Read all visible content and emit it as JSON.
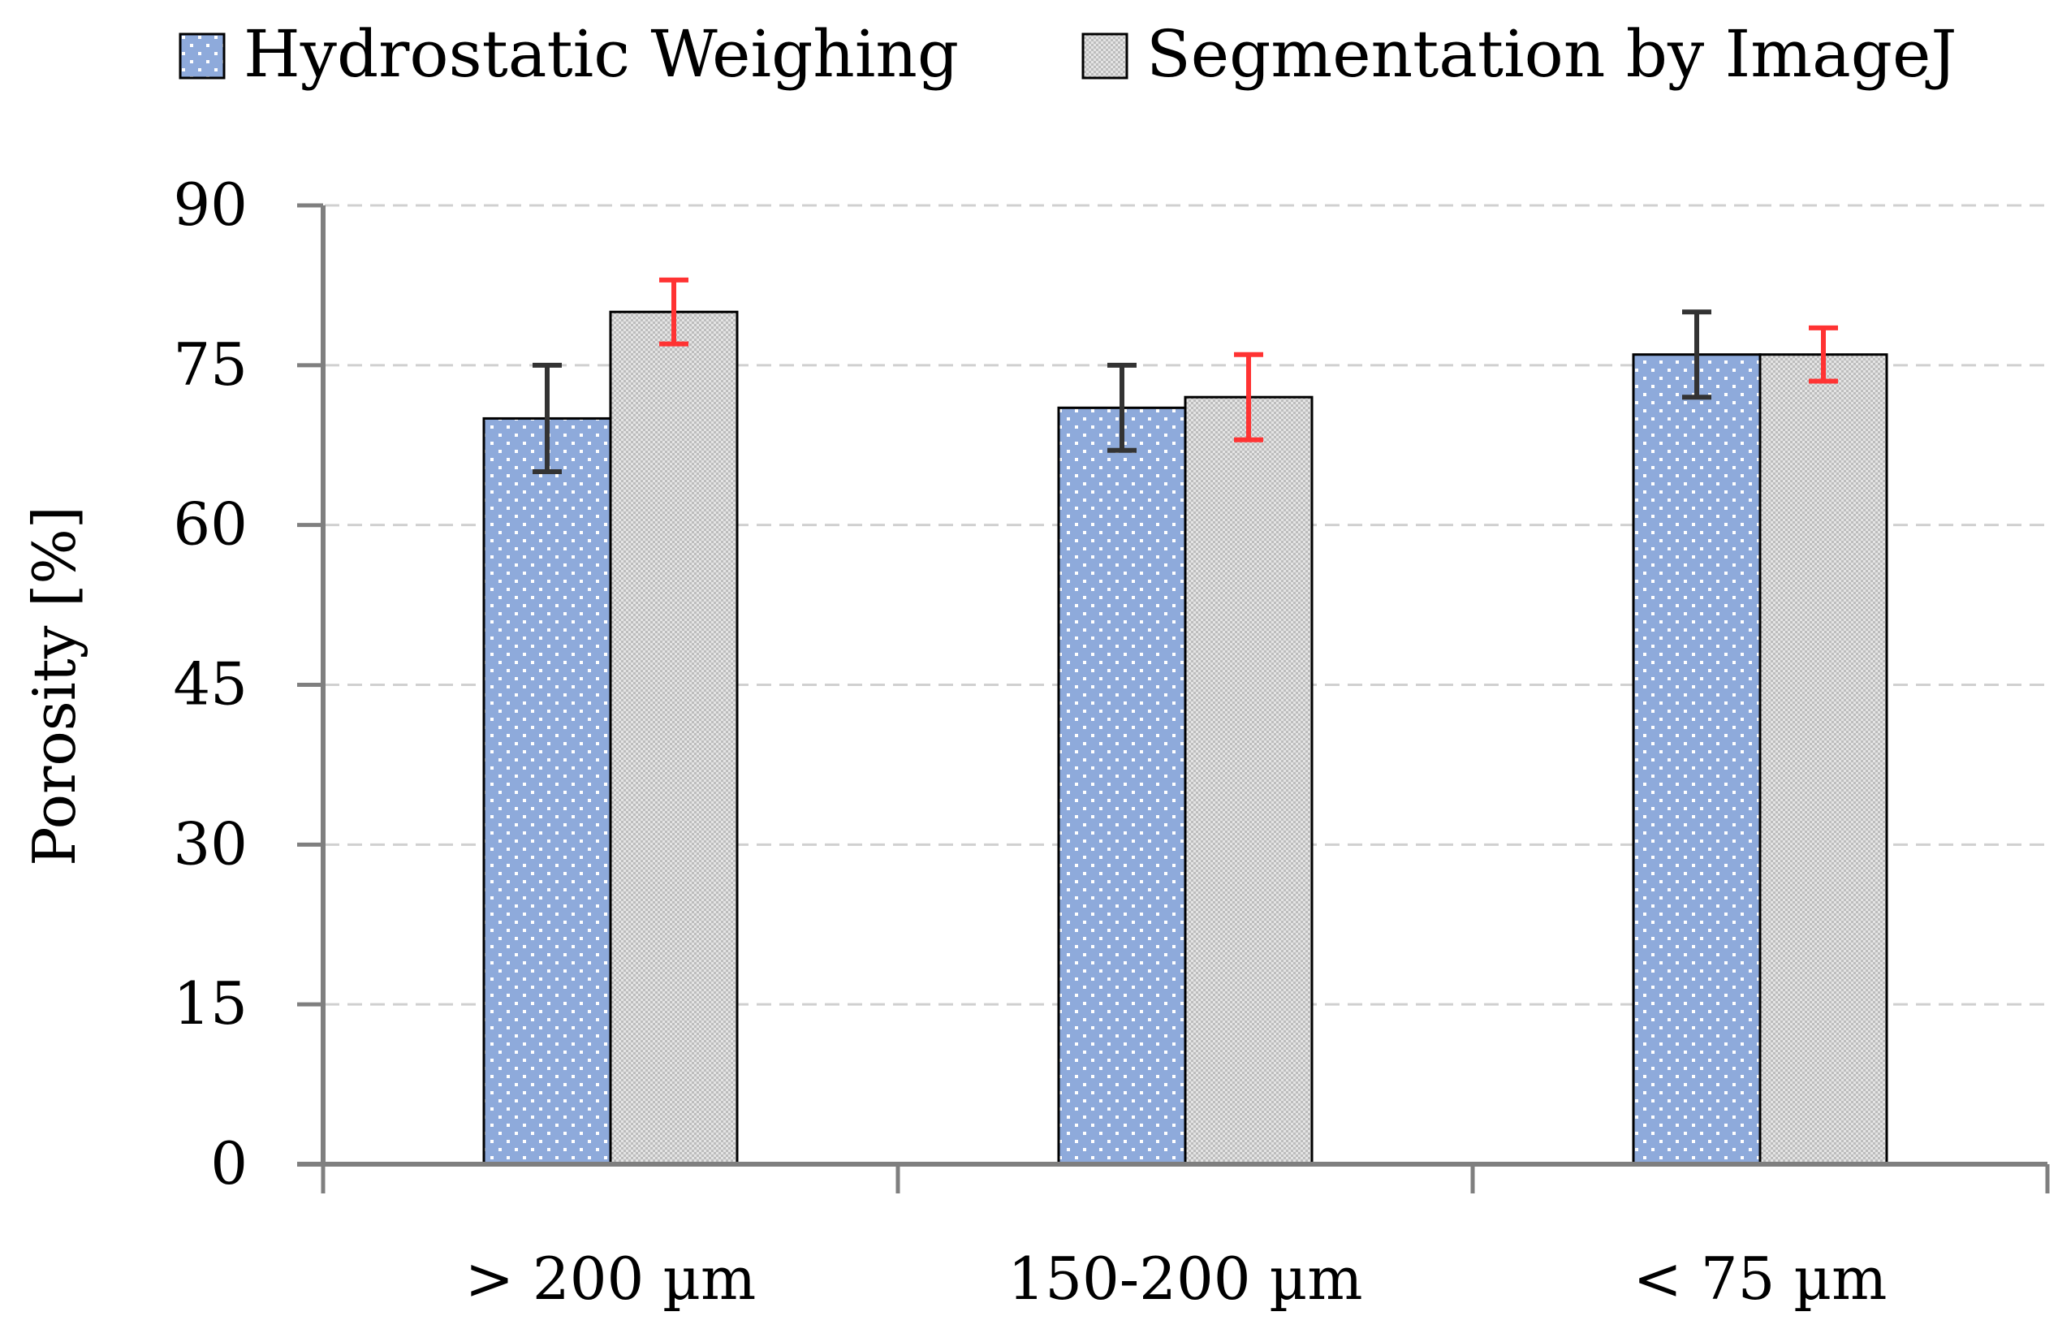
{
  "chart_data": {
    "type": "bar",
    "title": "",
    "xlabel": "",
    "ylabel": "Porosity [%]",
    "ylim": [
      0,
      90
    ],
    "yticks": [
      0,
      15,
      30,
      45,
      60,
      75,
      90
    ],
    "ytick_labels": [
      "0",
      "15",
      "30",
      "45",
      "60",
      "75",
      "90"
    ],
    "grid": true,
    "legend_position": "top",
    "categories": [
      "> 200 µm",
      "150-200 µm",
      "< 75 µm"
    ],
    "series": [
      {
        "name": "Hydrostatic Weighing",
        "values": [
          70,
          71,
          76
        ],
        "errors": [
          5,
          4,
          4
        ],
        "color": "#8eaadb",
        "pattern": "dots",
        "error_color": "#333333"
      },
      {
        "name": "Segmentation by ImageJ",
        "values": [
          80,
          72,
          76
        ],
        "errors": [
          3,
          4,
          2.5
        ],
        "color": "#d9d9d9",
        "pattern": "checker",
        "error_color": "#ff3333"
      }
    ]
  }
}
